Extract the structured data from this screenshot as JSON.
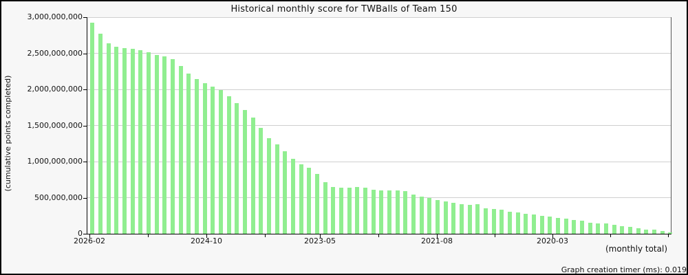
{
  "title": "Historical monthly score for TWBalls of Team 150",
  "y_axis_label": "(cumulative points completed)",
  "x_axis_note": "(monthly total)",
  "footer_text": "Graph creation timer (ms): 0.019",
  "colors": {
    "bar": "#90EE90",
    "grid": "#cfcfcf",
    "axis": "#000000",
    "outer_background": "#f7f7f7",
    "plot_background": "#ffffff"
  },
  "chart_data": {
    "type": "bar",
    "title": "Historical monthly score for TWBalls of Team 150",
    "xlabel": "(monthly total)",
    "ylabel": "(cumulative points completed)",
    "ylim": [
      0,
      3000000000
    ],
    "grid": true,
    "legend": false,
    "x_direction": "newest month on left, oldest on right",
    "y_ticks": [
      {
        "value": 3000000000,
        "label": "3,000,000,000"
      },
      {
        "value": 2500000000,
        "label": "2,500,000,000"
      },
      {
        "value": 2000000000,
        "label": "2,000,000,000"
      },
      {
        "value": 1500000000,
        "label": "1,500,000,000"
      },
      {
        "value": 1000000000,
        "label": "1,000,000,000"
      },
      {
        "value": 500000000,
        "label": "500,000,000"
      },
      {
        "value": 0,
        "label": "0"
      }
    ],
    "x_tick_labels": [
      "2026-02",
      "2024-10",
      "2023-05",
      "2021-08",
      "2020-03"
    ],
    "values": [
      2925000000,
      2770000000,
      2640000000,
      2590000000,
      2570000000,
      2560000000,
      2545000000,
      2515000000,
      2480000000,
      2460000000,
      2420000000,
      2325000000,
      2220000000,
      2145000000,
      2090000000,
      2040000000,
      1990000000,
      1905000000,
      1810000000,
      1715000000,
      1610000000,
      1470000000,
      1325000000,
      1240000000,
      1145000000,
      1040000000,
      965000000,
      915000000,
      830000000,
      715000000,
      650000000,
      640000000,
      640000000,
      648000000,
      640000000,
      610000000,
      600000000,
      600000000,
      600000000,
      590000000,
      545000000,
      515000000,
      495000000,
      465000000,
      450000000,
      430000000,
      410000000,
      400000000,
      410000000,
      355000000,
      345000000,
      335000000,
      305000000,
      295000000,
      275000000,
      265000000,
      250000000,
      240000000,
      220000000,
      210000000,
      190000000,
      180000000,
      155000000,
      145000000,
      145000000,
      125000000,
      105000000,
      95000000,
      75000000,
      57000000,
      57000000,
      38000000,
      19000000
    ]
  }
}
